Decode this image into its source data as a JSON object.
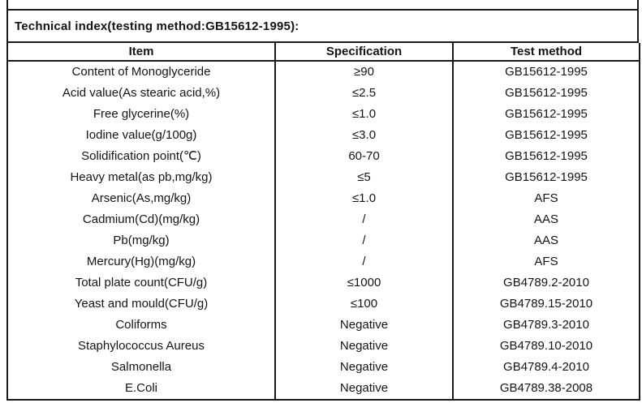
{
  "title": "Technical index(testing method:GB15612-1995):",
  "table": {
    "columns": [
      "Item",
      "Specification",
      "Test method"
    ],
    "rows": [
      {
        "item": "Content of Monoglyceride",
        "spec": "≥90",
        "method": "GB15612-1995"
      },
      {
        "item": "Acid value(As stearic acid,%)",
        "spec": "≤2.5",
        "method": "GB15612-1995"
      },
      {
        "item": "Free glycerine(%)",
        "spec": "≤1.0",
        "method": "GB15612-1995"
      },
      {
        "item": "Iodine value(g/100g)",
        "spec": "≤3.0",
        "method": "GB15612-1995"
      },
      {
        "item": "Solidification point(℃)",
        "spec": "60-70",
        "method": "GB15612-1995"
      },
      {
        "item": "Heavy metal(as pb,mg/kg)",
        "spec": "≤5",
        "method": "GB15612-1995"
      },
      {
        "item": "Arsenic(As,mg/kg)",
        "spec": "≤1.0",
        "method": "AFS"
      },
      {
        "item": "Cadmium(Cd)(mg/kg)",
        "spec": "/",
        "method": "AAS"
      },
      {
        "item": "Pb(mg/kg)",
        "spec": "/",
        "method": "AAS"
      },
      {
        "item": "Mercury(Hg)(mg/kg)",
        "spec": "/",
        "method": "AFS"
      },
      {
        "item": "Total plate count(CFU/g)",
        "spec": "≤1000",
        "method": "GB4789.2-2010"
      },
      {
        "item": "Yeast and mould(CFU/g)",
        "spec": "≤100",
        "method": "GB4789.15-2010"
      },
      {
        "item": "Coliforms",
        "spec": "Negative",
        "method": "GB4789.3-2010"
      },
      {
        "item": "Staphylococcus Aureus",
        "spec": "Negative",
        "method": "GB4789.10-2010"
      },
      {
        "item": "Salmonella",
        "spec": "Negative",
        "method": "GB4789.4-2010"
      },
      {
        "item": "E.Coli",
        "spec": "Negative",
        "method": "GB4789.38-2008"
      }
    ]
  }
}
